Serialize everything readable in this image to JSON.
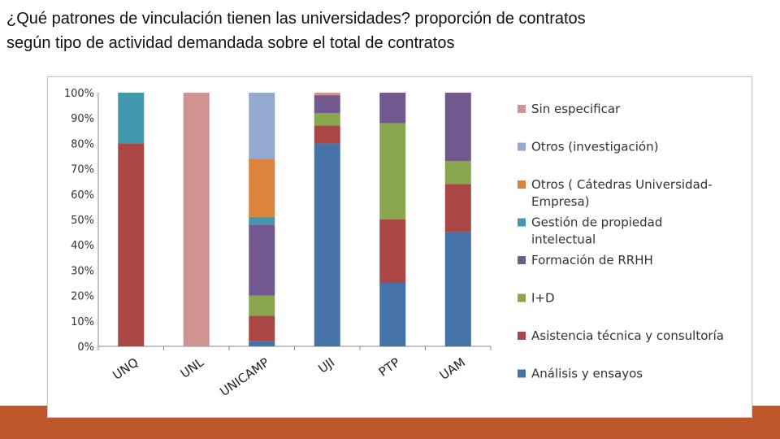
{
  "slide": {
    "title_line1": "¿Qué patrones de vinculación tienen las universidades? proporción de contratos",
    "title_line2": "según tipo de actividad demandada sobre el total de contratos"
  },
  "chart_data": {
    "type": "bar",
    "stacked": true,
    "title": "",
    "xlabel": "",
    "ylabel": "",
    "ylim": [
      0,
      100
    ],
    "yticks": [
      "0%",
      "10%",
      "20%",
      "30%",
      "40%",
      "50%",
      "60%",
      "70%",
      "80%",
      "90%",
      "100%"
    ],
    "grid": false,
    "legend_position": "right",
    "categories": [
      "UNQ",
      "UNL",
      "UNICAMP",
      "UJI",
      "PTP",
      "UAM"
    ],
    "series": [
      {
        "name": "Análisis y ensayos",
        "color": "#4572a7",
        "values": [
          0,
          0,
          2,
          80,
          25,
          45
        ]
      },
      {
        "name": "Asistencia técnica y consultoría",
        "color": "#aa4643",
        "values": [
          80,
          0,
          10,
          7,
          25,
          19
        ]
      },
      {
        "name": "I+D",
        "color": "#89a54e",
        "values": [
          0,
          0,
          8,
          5,
          38,
          9
        ]
      },
      {
        "name": "Formación de RRHH",
        "color": "#71588f",
        "values": [
          0,
          0,
          28,
          7,
          12,
          27
        ]
      },
      {
        "name": "Gestión de propiedad intelectual",
        "color": "#4198af",
        "values": [
          20,
          0,
          3,
          0,
          0,
          0
        ]
      },
      {
        "name": "Otros ( Cátedras Universidad-Empresa)",
        "color": "#db843d",
        "values": [
          0,
          0,
          23,
          0,
          0,
          0
        ]
      },
      {
        "name": "Otros (investigación)",
        "color": "#93a9cf",
        "values": [
          0,
          0,
          26,
          0,
          0,
          0
        ]
      },
      {
        "name": "Sin especificar",
        "color": "#d19392",
        "values": [
          0,
          100,
          0,
          1,
          0,
          0
        ]
      }
    ],
    "legend_order": [
      {
        "label": [
          "Sin especificar"
        ],
        "color": "#d19392"
      },
      {
        "label": [
          "Otros (investigación)"
        ],
        "color": "#93a9cf"
      },
      {
        "label": [
          "Otros ( Cátedras Universidad-",
          "Empresa)"
        ],
        "color": "#db843d"
      },
      {
        "label": [
          "Gestión de propiedad",
          "intelectual"
        ],
        "color": "#4198af"
      },
      {
        "label": [
          "Formación de RRHH"
        ],
        "color": "#71588f"
      },
      {
        "label": [
          "I+D"
        ],
        "color": "#89a54e"
      },
      {
        "label": [
          "Asistencia técnica y consultoría"
        ],
        "color": "#aa4643"
      },
      {
        "label": [
          "Análisis y ensayos"
        ],
        "color": "#4572a7"
      }
    ]
  }
}
